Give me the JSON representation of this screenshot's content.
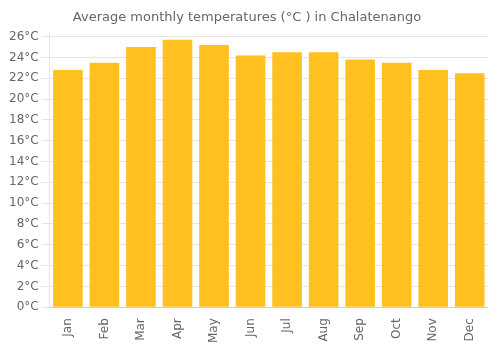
{
  "chart_data": {
    "type": "bar",
    "title": "Average monthly temperatures (°C ) in Chalatenango",
    "categories": [
      "Jan",
      "Feb",
      "Mar",
      "Apr",
      "May",
      "Jun",
      "Jul",
      "Aug",
      "Sep",
      "Oct",
      "Nov",
      "Dec"
    ],
    "values": [
      22.8,
      23.5,
      25.0,
      25.7,
      25.2,
      24.2,
      24.5,
      24.5,
      23.8,
      23.5,
      22.8,
      22.5
    ],
    "color": "#FFC020",
    "ylim": [
      0,
      26.3
    ],
    "yticks": [
      {
        "value": 0,
        "label": "0°C"
      },
      {
        "value": 2,
        "label": "2°C"
      },
      {
        "value": 4,
        "label": "4°C"
      },
      {
        "value": 6,
        "label": "6°C"
      },
      {
        "value": 8,
        "label": "8°C"
      },
      {
        "value": 10,
        "label": "10°C"
      },
      {
        "value": 12,
        "label": "12°C"
      },
      {
        "value": 14,
        "label": "14°C"
      },
      {
        "value": 16,
        "label": "16°C"
      },
      {
        "value": 18,
        "label": "18°C"
      },
      {
        "value": 20,
        "label": "20°C"
      },
      {
        "value": 22,
        "label": "22°C"
      },
      {
        "value": 24,
        "label": "24°C"
      },
      {
        "value": 26,
        "label": "26°C"
      }
    ],
    "grid": true
  }
}
